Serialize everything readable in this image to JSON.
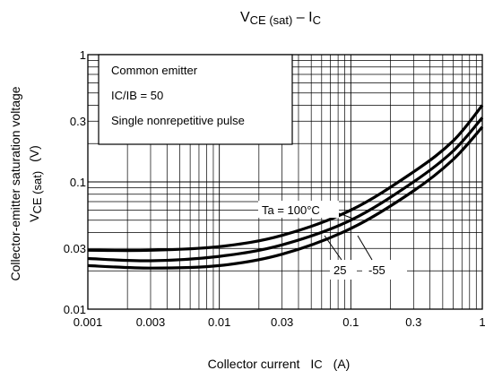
{
  "chart_data": {
    "type": "line",
    "title": {
      "v": "V",
      "v_sub": "CE (sat)",
      "sep": " – ",
      "i": "I",
      "i_sub": "C"
    },
    "xlabel": {
      "text": "Collector current",
      "sym": "I",
      "sym_sub": "C",
      "unit": "(A)"
    },
    "ylabel": {
      "line1": "Collector-emitter saturation voltage",
      "sym": "V",
      "sym_sub": "CE (sat)",
      "unit": "(V)"
    },
    "x_scale": "log",
    "y_scale": "log",
    "xlim": [
      0.001,
      1
    ],
    "ylim": [
      0.01,
      1
    ],
    "x_ticks": [
      0.001,
      0.003,
      0.01,
      0.03,
      0.1,
      0.3,
      1
    ],
    "x_tick_labels": [
      "0.001",
      "0.003",
      "0.01",
      "0.03",
      "0.1",
      "0.3",
      "1"
    ],
    "y_ticks": [
      0.01,
      0.03,
      0.1,
      0.3,
      1
    ],
    "y_tick_labels": [
      "0.01",
      "0.03",
      "0.1",
      "0.3",
      "1"
    ],
    "grid": true,
    "conditions": [
      "Common emitter",
      "IC/IB = 50",
      "Single nonrepetitive pulse"
    ],
    "series": [
      {
        "name": "Ta = 100°C",
        "x": [
          0.001,
          0.003,
          0.01,
          0.03,
          0.1,
          0.3,
          0.6,
          1
        ],
        "y": [
          0.029,
          0.029,
          0.031,
          0.038,
          0.06,
          0.12,
          0.21,
          0.4
        ]
      },
      {
        "name": "25",
        "x": [
          0.001,
          0.003,
          0.01,
          0.03,
          0.1,
          0.3,
          0.6,
          1
        ],
        "y": [
          0.025,
          0.024,
          0.026,
          0.032,
          0.05,
          0.1,
          0.175,
          0.32
        ]
      },
      {
        "name": "-55",
        "x": [
          0.001,
          0.003,
          0.01,
          0.03,
          0.1,
          0.3,
          0.6,
          1
        ],
        "y": [
          0.022,
          0.021,
          0.022,
          0.027,
          0.043,
          0.085,
          0.15,
          0.27
        ]
      }
    ]
  }
}
